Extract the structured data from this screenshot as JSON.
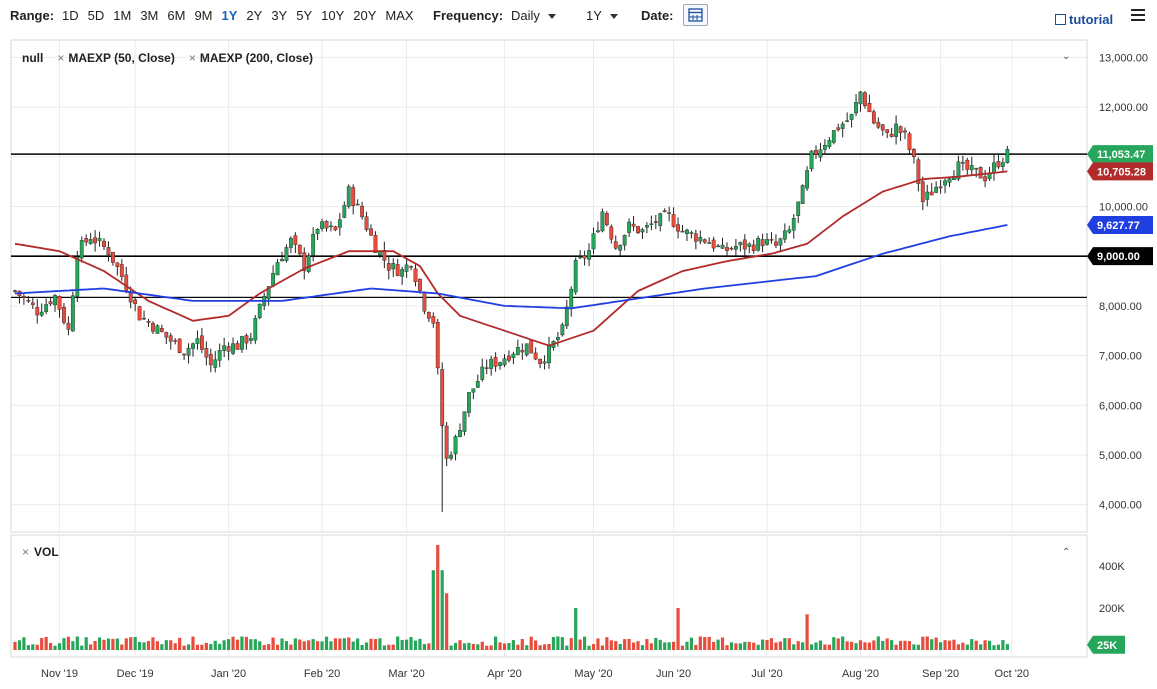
{
  "toolbar": {
    "range_label": "Range:",
    "ranges": [
      "1D",
      "5D",
      "1M",
      "3M",
      "6M",
      "9M",
      "1Y",
      "2Y",
      "3Y",
      "5Y",
      "10Y",
      "20Y",
      "MAX"
    ],
    "active_range": "1Y",
    "frequency_label": "Frequency:",
    "frequency_value": "Daily",
    "period_value": "1Y",
    "date_label": "Date:",
    "tutorial_label": "tutorial"
  },
  "legend": {
    "symbol": "null",
    "ma1": "MAEXP (50, Close)",
    "ma2": "MAEXP (200, Close)",
    "volume": "VOL"
  },
  "colors": {
    "up": "#26a65b",
    "down": "#e74c3c",
    "ma50": "#b22a2a",
    "ma200": "#1f3fe0",
    "volume_tag": "#26a65b"
  },
  "chart_data": {
    "type": "candlestick",
    "y_ticks": [
      13000,
      12000,
      11000,
      10000,
      9000,
      8000,
      7000,
      6000,
      5000,
      4000
    ],
    "y_tick_labels": [
      "13,000.00",
      "12,000.00",
      "11,000.00",
      "10,000.00",
      "9,000.00",
      "8,000.00",
      "7,000.00",
      "6,000.00",
      "5,000.00",
      "4,000.00"
    ],
    "ylim": [
      3450,
      13350
    ],
    "x_labels": [
      "Nov '19",
      "Dec '19",
      "Jan '20",
      "Feb '20",
      "Mar '20",
      "Apr '20",
      "May '20",
      "Jun '20",
      "Jul '20",
      "Aug '20",
      "Sep '20",
      "Oct '20"
    ],
    "price_anchors": [
      [
        0,
        8300
      ],
      [
        5,
        7900
      ],
      [
        9,
        8200
      ],
      [
        12,
        7500
      ],
      [
        14,
        9100
      ],
      [
        17,
        9400
      ],
      [
        21,
        9100
      ],
      [
        24,
        8600
      ],
      [
        28,
        7800
      ],
      [
        31,
        7600
      ],
      [
        35,
        7300
      ],
      [
        38,
        7100
      ],
      [
        41,
        7300
      ],
      [
        44,
        6800
      ],
      [
        47,
        7200
      ],
      [
        50,
        7200
      ],
      [
        53,
        7400
      ],
      [
        56,
        8200
      ],
      [
        59,
        8900
      ],
      [
        62,
        9300
      ],
      [
        65,
        8800
      ],
      [
        68,
        9600
      ],
      [
        72,
        9500
      ],
      [
        75,
        10300
      ],
      [
        78,
        9800
      ],
      [
        81,
        9200
      ],
      [
        84,
        8800
      ],
      [
        87,
        8700
      ],
      [
        89,
        8900
      ],
      [
        92,
        8000
      ],
      [
        94,
        7700
      ],
      [
        96,
        5600
      ],
      [
        97,
        4900
      ],
      [
        99,
        5300
      ],
      [
        102,
        6200
      ],
      [
        106,
        6800
      ],
      [
        109,
        6900
      ],
      [
        112,
        7100
      ],
      [
        115,
        7200
      ],
      [
        118,
        6900
      ],
      [
        120,
        7100
      ],
      [
        123,
        7500
      ],
      [
        126,
        8800
      ],
      [
        129,
        9100
      ],
      [
        132,
        9900
      ],
      [
        135,
        9200
      ],
      [
        138,
        9600
      ],
      [
        141,
        9500
      ],
      [
        144,
        9700
      ],
      [
        147,
        9800
      ],
      [
        150,
        9500
      ],
      [
        153,
        9400
      ],
      [
        156,
        9300
      ],
      [
        159,
        9100
      ],
      [
        162,
        9200
      ],
      [
        165,
        9200
      ],
      [
        168,
        9300
      ],
      [
        171,
        9200
      ],
      [
        174,
        9500
      ],
      [
        177,
        10300
      ],
      [
        179,
        11000
      ],
      [
        182,
        11300
      ],
      [
        185,
        11600
      ],
      [
        188,
        11800
      ],
      [
        190,
        12300
      ],
      [
        193,
        11700
      ],
      [
        196,
        11400
      ],
      [
        198,
        11600
      ],
      [
        200,
        11400
      ],
      [
        202,
        10900
      ],
      [
        204,
        10100
      ],
      [
        206,
        10300
      ],
      [
        209,
        10600
      ],
      [
        212,
        10800
      ],
      [
        215,
        10700
      ],
      [
        218,
        10600
      ],
      [
        221,
        10900
      ],
      [
        223,
        11050
      ]
    ],
    "last_close": 11053.47,
    "ma50": [
      [
        0,
        9250
      ],
      [
        10,
        9100
      ],
      [
        20,
        8700
      ],
      [
        30,
        8100
      ],
      [
        40,
        7700
      ],
      [
        48,
        7800
      ],
      [
        55,
        8250
      ],
      [
        65,
        8750
      ],
      [
        75,
        9100
      ],
      [
        85,
        9100
      ],
      [
        91,
        8800
      ],
      [
        95,
        8250
      ],
      [
        100,
        7800
      ],
      [
        110,
        7500
      ],
      [
        120,
        7200
      ],
      [
        130,
        7500
      ],
      [
        140,
        8300
      ],
      [
        150,
        8700
      ],
      [
        160,
        8900
      ],
      [
        170,
        9050
      ],
      [
        178,
        9250
      ],
      [
        186,
        9800
      ],
      [
        195,
        10300
      ],
      [
        204,
        10550
      ],
      [
        212,
        10600
      ],
      [
        223,
        10705
      ]
    ],
    "ma200": [
      [
        0,
        8250
      ],
      [
        20,
        8350
      ],
      [
        40,
        8100
      ],
      [
        60,
        8100
      ],
      [
        80,
        8350
      ],
      [
        95,
        8250
      ],
      [
        110,
        8000
      ],
      [
        125,
        7950
      ],
      [
        140,
        8150
      ],
      [
        155,
        8350
      ],
      [
        170,
        8500
      ],
      [
        180,
        8600
      ],
      [
        195,
        9050
      ],
      [
        210,
        9400
      ],
      [
        223,
        9628
      ]
    ],
    "h_lines": [
      11053.47,
      9000,
      8170
    ],
    "price_tags": [
      {
        "label": "11,053.47",
        "value": 11053.47,
        "color": "#26a65b"
      },
      {
        "label": "10,705.28",
        "value": 10705.28,
        "color": "#b22a2a"
      },
      {
        "label": "9,627.77",
        "value": 9627.77,
        "color": "#1f3fe0"
      },
      {
        "label": "9,000.00",
        "value": 9000,
        "color": "#000000"
      }
    ],
    "volume_ticks": [
      "400K",
      "200K"
    ],
    "volume_tick_values": [
      400000,
      200000
    ],
    "volume_last_label": "25K",
    "volume_last": 25000,
    "volume_spikes": [
      [
        94,
        380000
      ],
      [
        95,
        500000
      ],
      [
        96,
        380000
      ],
      [
        97,
        270000
      ],
      [
        126,
        200000
      ],
      [
        149,
        200000
      ],
      [
        178,
        170000
      ]
    ]
  }
}
